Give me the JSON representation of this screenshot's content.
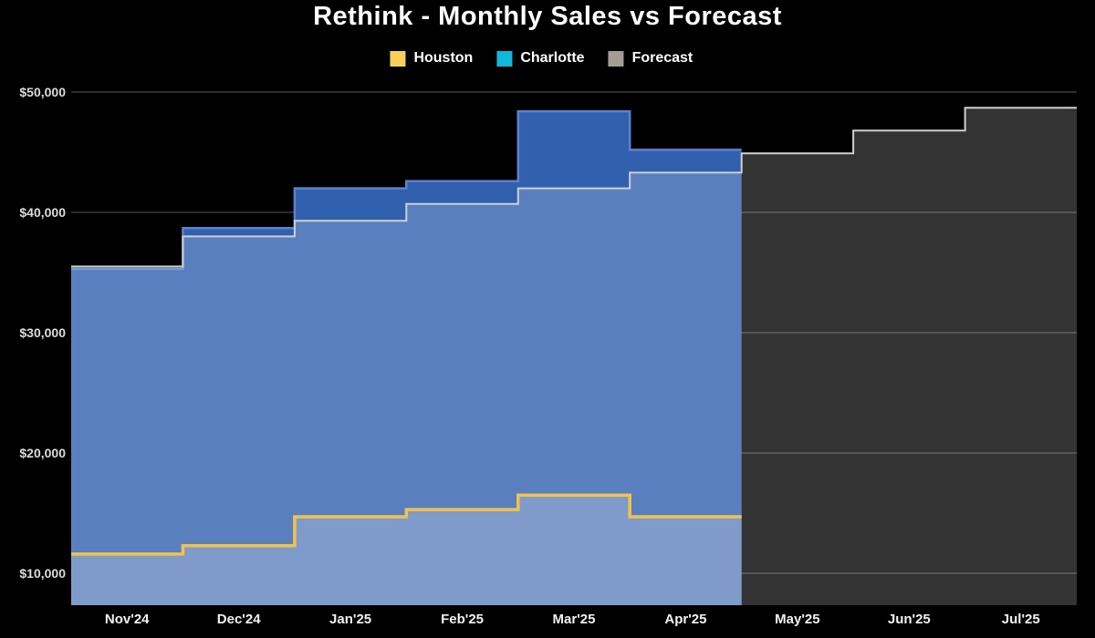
{
  "title": "Rethink - Monthly Sales vs Forecast",
  "legend": [
    {
      "label": "Houston",
      "color": "#f7d154"
    },
    {
      "label": "Charlotte",
      "color": "#12b7d9"
    },
    {
      "label": "Forecast",
      "color": "#a39d94"
    }
  ],
  "chart_data": {
    "type": "area",
    "step": true,
    "title": "Rethink - Monthly Sales vs Forecast",
    "categories": [
      "Nov'24",
      "Dec'24",
      "Jan'25",
      "Feb'25",
      "Mar'25",
      "Apr'25",
      "May'25",
      "Jun'25",
      "Jul'25"
    ],
    "series": [
      {
        "name": "Houston",
        "role": "actual",
        "stack": "sales",
        "color": "#f2c24a",
        "fill_alpha": 0.22,
        "values": [
          11600,
          12300,
          14700,
          15300,
          16500,
          14700,
          null,
          null,
          null
        ]
      },
      {
        "name": "Charlotte",
        "role": "actual",
        "stack": "sales",
        "color": "#3160ae",
        "values": [
          23700,
          26400,
          27300,
          27300,
          31900,
          30500,
          null,
          null,
          null
        ]
      },
      {
        "name": "Forecast",
        "role": "forecast",
        "color": "#cdd0d0",
        "fill_alpha": 0.2,
        "values": [
          35500,
          38000,
          39300,
          40700,
          42000,
          43300,
          44900,
          46800,
          48700
        ]
      }
    ],
    "sales_totals": [
      35300,
      38700,
      42000,
      42600,
      48400,
      45200,
      null,
      null,
      null
    ],
    "y_ticks": [
      {
        "value": 10000,
        "label": "$10,000"
      },
      {
        "value": 20000,
        "label": "$20,000"
      },
      {
        "value": 30000,
        "label": "$30,000"
      },
      {
        "value": 40000,
        "label": "$40,000"
      },
      {
        "value": 50000,
        "label": "$50,000"
      }
    ],
    "ylim": [
      7350,
      50000
    ],
    "xlabel": "",
    "ylabel": "",
    "grid": "horizontal",
    "legend_position": "top"
  },
  "styles": {
    "background": "#000000",
    "title_color": "#ffffff",
    "grid_color": "#3a3a3a",
    "total_fill": "#3160ae",
    "total_stroke": "#5b82cf",
    "forecast_stroke": "#cdd0d0",
    "houston_stroke": "#f2c24a",
    "x_label_color": "#f2f2f2",
    "y_label_color": "#dcdcdc"
  }
}
